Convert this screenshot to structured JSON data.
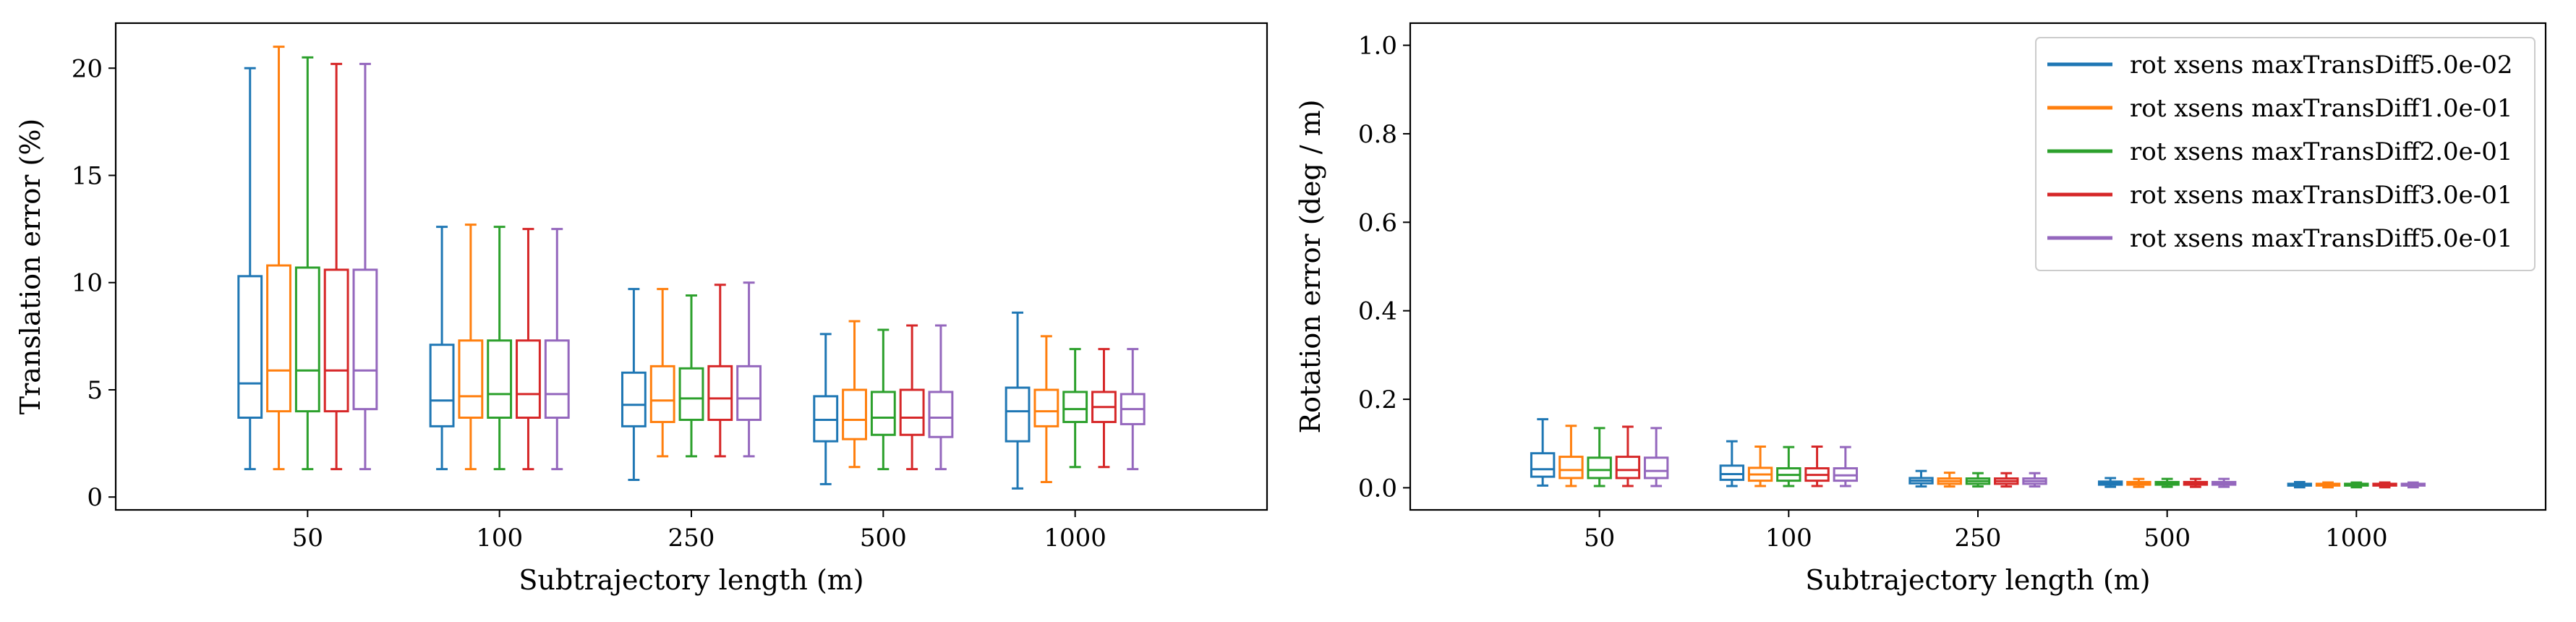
{
  "chart_data": [
    {
      "type": "box",
      "title": "",
      "xlabel": "Subtrajectory length (m)",
      "ylabel": "Translation error (%)",
      "ylim": [
        -0.6,
        22.1
      ],
      "yticks": [
        0,
        5,
        10,
        15,
        20
      ],
      "categories": [
        "50",
        "100",
        "250",
        "500",
        "1000"
      ],
      "legend": null,
      "series": [
        {
          "name": "rot xsens maxTransDiff5.0e-02",
          "color": "#1f77b4",
          "boxes": [
            {
              "whislo": 1.3,
              "q1": 3.7,
              "med": 5.3,
              "q3": 10.3,
              "whishi": 20.0
            },
            {
              "whislo": 1.3,
              "q1": 3.3,
              "med": 4.5,
              "q3": 7.1,
              "whishi": 12.6
            },
            {
              "whislo": 0.8,
              "q1": 3.3,
              "med": 4.3,
              "q3": 5.8,
              "whishi": 9.7
            },
            {
              "whislo": 0.6,
              "q1": 2.6,
              "med": 3.6,
              "q3": 4.7,
              "whishi": 7.6
            },
            {
              "whislo": 0.4,
              "q1": 2.6,
              "med": 4.0,
              "q3": 5.1,
              "whishi": 8.6
            }
          ]
        },
        {
          "name": "rot xsens maxTransDiff1.0e-01",
          "color": "#ff7f0e",
          "boxes": [
            {
              "whislo": 1.3,
              "q1": 4.0,
              "med": 5.9,
              "q3": 10.8,
              "whishi": 21.0
            },
            {
              "whislo": 1.3,
              "q1": 3.7,
              "med": 4.7,
              "q3": 7.3,
              "whishi": 12.7
            },
            {
              "whislo": 1.9,
              "q1": 3.5,
              "med": 4.5,
              "q3": 6.1,
              "whishi": 9.7
            },
            {
              "whislo": 1.4,
              "q1": 2.7,
              "med": 3.6,
              "q3": 5.0,
              "whishi": 8.2
            },
            {
              "whislo": 0.7,
              "q1": 3.3,
              "med": 4.0,
              "q3": 5.0,
              "whishi": 7.5
            }
          ]
        },
        {
          "name": "rot xsens maxTransDiff2.0e-01",
          "color": "#2ca02c",
          "boxes": [
            {
              "whislo": 1.3,
              "q1": 4.0,
              "med": 5.9,
              "q3": 10.7,
              "whishi": 20.5
            },
            {
              "whislo": 1.3,
              "q1": 3.7,
              "med": 4.8,
              "q3": 7.3,
              "whishi": 12.6
            },
            {
              "whislo": 1.9,
              "q1": 3.6,
              "med": 4.6,
              "q3": 6.0,
              "whishi": 9.4
            },
            {
              "whislo": 1.3,
              "q1": 2.9,
              "med": 3.7,
              "q3": 4.9,
              "whishi": 7.8
            },
            {
              "whislo": 1.4,
              "q1": 3.5,
              "med": 4.1,
              "q3": 4.9,
              "whishi": 6.9
            }
          ]
        },
        {
          "name": "rot xsens maxTransDiff3.0e-01",
          "color": "#d62728",
          "boxes": [
            {
              "whislo": 1.3,
              "q1": 4.0,
              "med": 5.9,
              "q3": 10.6,
              "whishi": 20.2
            },
            {
              "whislo": 1.3,
              "q1": 3.7,
              "med": 4.8,
              "q3": 7.3,
              "whishi": 12.5
            },
            {
              "whislo": 1.9,
              "q1": 3.6,
              "med": 4.6,
              "q3": 6.1,
              "whishi": 9.9
            },
            {
              "whislo": 1.3,
              "q1": 2.9,
              "med": 3.7,
              "q3": 5.0,
              "whishi": 8.0
            },
            {
              "whislo": 1.4,
              "q1": 3.5,
              "med": 4.2,
              "q3": 4.9,
              "whishi": 6.9
            }
          ]
        },
        {
          "name": "rot xsens maxTransDiff5.0e-01",
          "color": "#9467bd",
          "boxes": [
            {
              "whislo": 1.3,
              "q1": 4.1,
              "med": 5.9,
              "q3": 10.6,
              "whishi": 20.2
            },
            {
              "whislo": 1.3,
              "q1": 3.7,
              "med": 4.8,
              "q3": 7.3,
              "whishi": 12.5
            },
            {
              "whislo": 1.9,
              "q1": 3.6,
              "med": 4.6,
              "q3": 6.1,
              "whishi": 10.0
            },
            {
              "whislo": 1.3,
              "q1": 2.8,
              "med": 3.7,
              "q3": 4.9,
              "whishi": 8.0
            },
            {
              "whislo": 1.3,
              "q1": 3.4,
              "med": 4.1,
              "q3": 4.8,
              "whishi": 6.9
            }
          ]
        }
      ]
    },
    {
      "type": "box",
      "title": "",
      "xlabel": "Subtrajectory length (m)",
      "ylabel": "Rotation error (deg / m)",
      "ylim": [
        -0.05,
        1.05
      ],
      "yticks": [
        "0.0",
        "0.2",
        "0.4",
        "0.6",
        "0.8",
        "1.0"
      ],
      "categories": [
        "50",
        "100",
        "250",
        "500",
        "1000"
      ],
      "legend": "top-right",
      "series": [
        {
          "name": "rot xsens maxTransDiff5.0e-02",
          "color": "#1f77b4",
          "boxes": [
            {
              "whislo": 0.005,
              "q1": 0.025,
              "med": 0.042,
              "q3": 0.078,
              "whishi": 0.155
            },
            {
              "whislo": 0.004,
              "q1": 0.018,
              "med": 0.031,
              "q3": 0.05,
              "whishi": 0.105
            },
            {
              "whislo": 0.003,
              "q1": 0.01,
              "med": 0.016,
              "q3": 0.022,
              "whishi": 0.038
            },
            {
              "whislo": 0.002,
              "q1": 0.007,
              "med": 0.01,
              "q3": 0.014,
              "whishi": 0.022
            },
            {
              "whislo": 0.001,
              "q1": 0.005,
              "med": 0.007,
              "q3": 0.009,
              "whishi": 0.013
            }
          ]
        },
        {
          "name": "rot xsens maxTransDiff1.0e-01",
          "color": "#ff7f0e",
          "boxes": [
            {
              "whislo": 0.004,
              "q1": 0.022,
              "med": 0.04,
              "q3": 0.07,
              "whishi": 0.14
            },
            {
              "whislo": 0.004,
              "q1": 0.016,
              "med": 0.03,
              "q3": 0.045,
              "whishi": 0.093
            },
            {
              "whislo": 0.003,
              "q1": 0.009,
              "med": 0.015,
              "q3": 0.021,
              "whishi": 0.034
            },
            {
              "whislo": 0.002,
              "q1": 0.007,
              "med": 0.01,
              "q3": 0.013,
              "whishi": 0.02
            },
            {
              "whislo": 0.001,
              "q1": 0.005,
              "med": 0.007,
              "q3": 0.009,
              "whishi": 0.012
            }
          ]
        },
        {
          "name": "rot xsens maxTransDiff2.0e-01",
          "color": "#2ca02c",
          "boxes": [
            {
              "whislo": 0.004,
              "q1": 0.022,
              "med": 0.04,
              "q3": 0.068,
              "whishi": 0.135
            },
            {
              "whislo": 0.004,
              "q1": 0.016,
              "med": 0.029,
              "q3": 0.044,
              "whishi": 0.092
            },
            {
              "whislo": 0.003,
              "q1": 0.009,
              "med": 0.015,
              "q3": 0.021,
              "whishi": 0.033
            },
            {
              "whislo": 0.002,
              "q1": 0.007,
              "med": 0.01,
              "q3": 0.013,
              "whishi": 0.02
            },
            {
              "whislo": 0.001,
              "q1": 0.005,
              "med": 0.007,
              "q3": 0.009,
              "whishi": 0.012
            }
          ]
        },
        {
          "name": "rot xsens maxTransDiff3.0e-01",
          "color": "#d62728",
          "boxes": [
            {
              "whislo": 0.004,
              "q1": 0.022,
              "med": 0.04,
              "q3": 0.07,
              "whishi": 0.138
            },
            {
              "whislo": 0.004,
              "q1": 0.016,
              "med": 0.029,
              "q3": 0.044,
              "whishi": 0.093
            },
            {
              "whislo": 0.003,
              "q1": 0.009,
              "med": 0.015,
              "q3": 0.021,
              "whishi": 0.033
            },
            {
              "whislo": 0.002,
              "q1": 0.007,
              "med": 0.01,
              "q3": 0.013,
              "whishi": 0.02
            },
            {
              "whislo": 0.001,
              "q1": 0.005,
              "med": 0.007,
              "q3": 0.009,
              "whishi": 0.012
            }
          ]
        },
        {
          "name": "rot xsens maxTransDiff5.0e-01",
          "color": "#9467bd",
          "boxes": [
            {
              "whislo": 0.004,
              "q1": 0.022,
              "med": 0.038,
              "q3": 0.068,
              "whishi": 0.135
            },
            {
              "whislo": 0.004,
              "q1": 0.016,
              "med": 0.028,
              "q3": 0.044,
              "whishi": 0.092
            },
            {
              "whislo": 0.003,
              "q1": 0.009,
              "med": 0.015,
              "q3": 0.021,
              "whishi": 0.033
            },
            {
              "whislo": 0.002,
              "q1": 0.007,
              "med": 0.01,
              "q3": 0.013,
              "whishi": 0.02
            },
            {
              "whislo": 0.001,
              "q1": 0.005,
              "med": 0.007,
              "q3": 0.009,
              "whishi": 0.012
            }
          ]
        }
      ]
    }
  ]
}
